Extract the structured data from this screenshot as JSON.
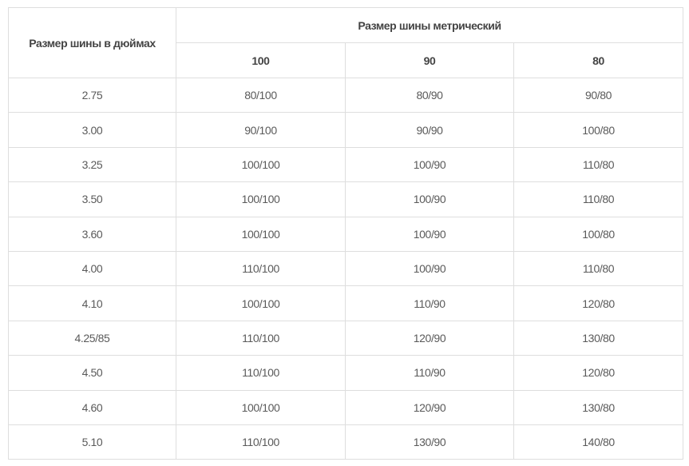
{
  "header": {
    "inches": "Размер шины в дюймах",
    "metric": "Размер шины метрический",
    "sub": [
      "100",
      "90",
      "80"
    ]
  },
  "rows": [
    [
      "2.75",
      "80/100",
      "80/90",
      "90/80"
    ],
    [
      "3.00",
      "90/100",
      "90/90",
      "100/80"
    ],
    [
      "3.25",
      "100/100",
      "100/90",
      "110/80"
    ],
    [
      "3.50",
      "100/100",
      "100/90",
      "110/80"
    ],
    [
      "3.60",
      "100/100",
      "100/90",
      "100/80"
    ],
    [
      "4.00",
      "110/100",
      "100/90",
      "110/80"
    ],
    [
      "4.10",
      "100/100",
      "110/90",
      "120/80"
    ],
    [
      "4.25/85",
      "110/100",
      "120/90",
      "130/80"
    ],
    [
      "4.50",
      "110/100",
      "110/90",
      "120/80"
    ],
    [
      "4.60",
      "100/100",
      "120/90",
      "130/80"
    ],
    [
      "5.10",
      "110/100",
      "130/90",
      "140/80"
    ]
  ]
}
